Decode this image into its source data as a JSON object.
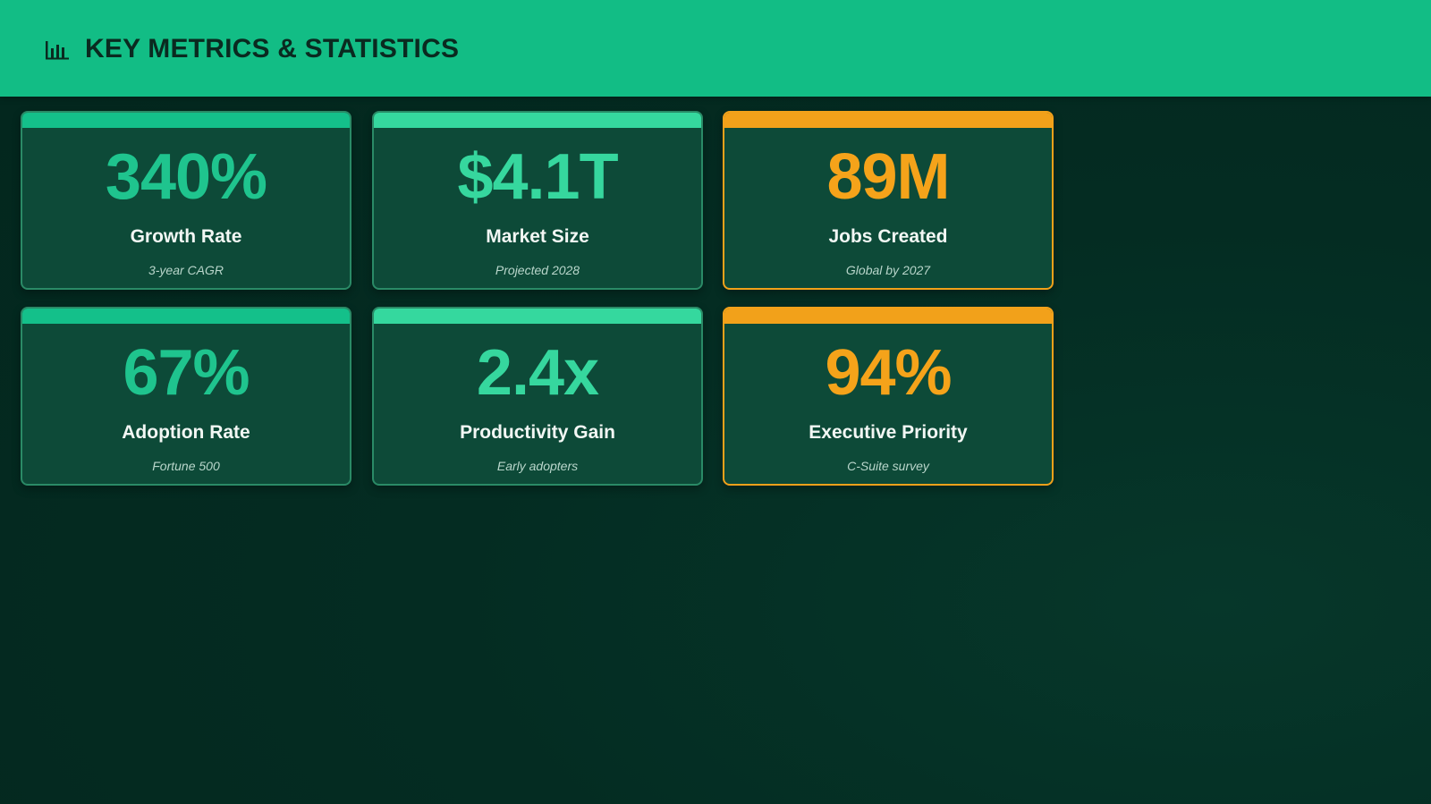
{
  "header": {
    "title": "KEY METRICS & STATISTICS",
    "icon": "bar-chart-icon"
  },
  "colors": {
    "header_bg": "#12bd85",
    "background": "#03291f",
    "card_bg": "#0d4a38",
    "accent_green": "#14c08a",
    "accent_mint": "#35d89e",
    "accent_orange": "#f2a11a"
  },
  "metrics": [
    {
      "value": "340%",
      "label": "Growth Rate",
      "sub": "3-year CAGR",
      "accent": "green"
    },
    {
      "value": "$4.1T",
      "label": "Market Size",
      "sub": "Projected 2028",
      "accent": "mint"
    },
    {
      "value": "89M",
      "label": "Jobs Created",
      "sub": "Global by 2027",
      "accent": "orange"
    },
    {
      "value": "67%",
      "label": "Adoption Rate",
      "sub": "Fortune 500",
      "accent": "green"
    },
    {
      "value": "2.4x",
      "label": "Productivity Gain",
      "sub": "Early adopters",
      "accent": "mint"
    },
    {
      "value": "94%",
      "label": "Executive Priority",
      "sub": "C-Suite survey",
      "accent": "orange"
    }
  ]
}
